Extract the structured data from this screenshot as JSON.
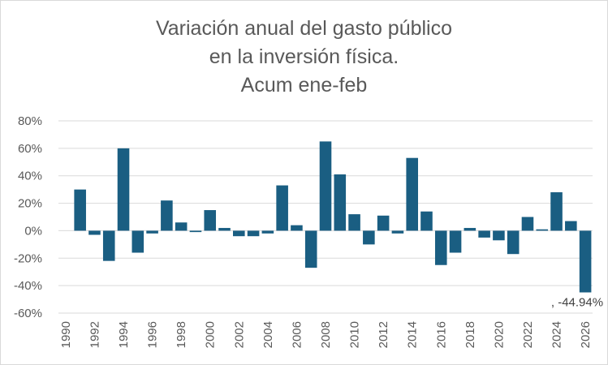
{
  "chart_data": {
    "type": "bar",
    "title_lines": [
      "Variación anual del gasto público",
      "en la inversión física.",
      "Acum ene-feb"
    ],
    "categories": [
      "1990",
      "1991",
      "1992",
      "1993",
      "1994",
      "1995",
      "1996",
      "1997",
      "1998",
      "1999",
      "2000",
      "2001",
      "2002",
      "2003",
      "2004",
      "2005",
      "2006",
      "2007",
      "2008",
      "2009",
      "2010",
      "2011",
      "2012",
      "2013",
      "2014",
      "2015",
      "2016",
      "2017",
      "2018",
      "2019",
      "2020",
      "2021",
      "2022",
      "2023",
      "2024",
      "2025",
      "2026"
    ],
    "x_tick_labels": [
      "1990",
      "1992",
      "1994",
      "1996",
      "1998",
      "2000",
      "2002",
      "2004",
      "2006",
      "2008",
      "2010",
      "2012",
      "2014",
      "2016",
      "2018",
      "2020",
      "2022",
      "2024",
      "2026"
    ],
    "values": [
      null,
      30,
      -3,
      -22,
      60,
      -16,
      -2,
      22,
      6,
      -1,
      15,
      2,
      -4,
      -4,
      -2,
      33,
      4,
      -27,
      65,
      41,
      12,
      -10,
      11,
      -2,
      53,
      14,
      -25,
      -16,
      2,
      -5,
      -7,
      -17,
      10,
      1,
      28,
      7,
      -44.94
    ],
    "y_ticks": [
      "80%",
      "60%",
      "40%",
      "20%",
      "0%",
      "-20%",
      "-40%",
      "-60%"
    ],
    "ylim": [
      -60,
      80
    ],
    "y_step": 20,
    "bar_color": "#1a5e82",
    "gridline_color": "#d9d9d9",
    "data_label": {
      "category": "2026",
      "text": ", -44.94%"
    },
    "xlabel": "",
    "ylabel": "",
    "legend": "none",
    "grid": true
  }
}
